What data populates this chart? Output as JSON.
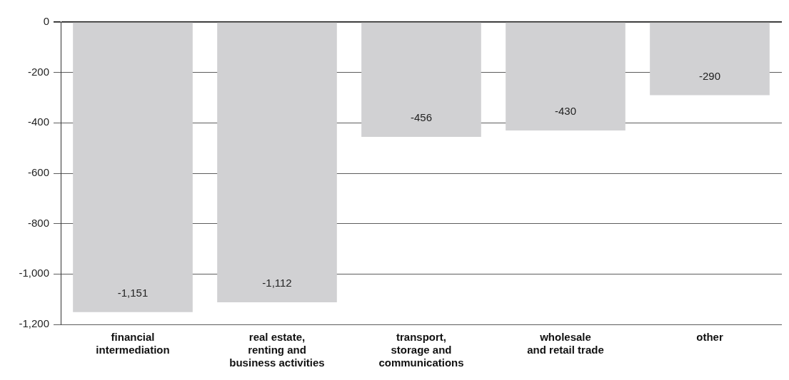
{
  "chart_data": {
    "type": "bar",
    "categories": [
      "financial\nintermediation",
      "real estate,\nrenting and\nbusiness activities",
      "transport,\nstorage and\ncommunications",
      "wholesale\nand retail trade",
      "other"
    ],
    "values": [
      -1151,
      -1112,
      -456,
      -430,
      -290
    ],
    "value_labels": [
      "-1,151",
      "-1,112",
      "-456",
      "-430",
      "-290"
    ],
    "color": "#d1d1d3",
    "ylim": [
      -1200,
      0
    ],
    "yticks": [
      {
        "value": -1200,
        "label": "-1,200"
      },
      {
        "value": -1000,
        "label": "-1,000"
      },
      -800,
      -600,
      -400,
      -200,
      0
    ],
    "grid": "y",
    "legend": false
  }
}
